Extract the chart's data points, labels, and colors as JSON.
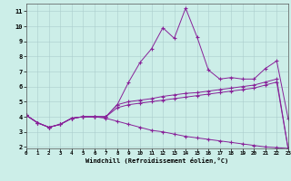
{
  "background_color": "#cceee8",
  "line_color": "#882299",
  "xlim": [
    0,
    23
  ],
  "ylim": [
    1.9,
    11.5
  ],
  "yticks": [
    2,
    3,
    4,
    5,
    6,
    7,
    8,
    9,
    10,
    11
  ],
  "xticks": [
    0,
    1,
    2,
    3,
    4,
    5,
    6,
    7,
    8,
    9,
    10,
    11,
    12,
    13,
    14,
    15,
    16,
    17,
    18,
    19,
    20,
    21,
    22,
    23
  ],
  "xlabel": "Windchill (Refroidissement éolien,°C)",
  "line1_x": [
    0,
    1,
    2,
    3,
    4,
    5,
    6,
    7,
    8,
    9,
    10,
    11,
    12,
    13,
    14,
    15,
    16,
    17,
    18,
    19,
    20,
    21,
    22,
    23
  ],
  "line1_y": [
    4.1,
    3.6,
    3.3,
    3.5,
    3.9,
    4.0,
    4.0,
    4.0,
    4.8,
    6.3,
    7.6,
    8.5,
    9.9,
    9.2,
    11.2,
    9.3,
    7.1,
    6.5,
    6.6,
    6.5,
    6.5,
    7.2,
    7.7,
    3.9
  ],
  "line2_x": [
    0,
    1,
    2,
    3,
    4,
    5,
    6,
    7,
    8,
    9,
    10,
    11,
    12,
    13,
    14,
    15,
    16,
    17,
    18,
    19,
    20,
    21,
    22,
    23
  ],
  "line2_y": [
    4.1,
    3.6,
    3.3,
    3.5,
    3.9,
    4.0,
    4.0,
    4.0,
    4.8,
    5.0,
    5.1,
    5.2,
    5.35,
    5.45,
    5.55,
    5.6,
    5.7,
    5.8,
    5.9,
    6.0,
    6.1,
    6.3,
    6.5,
    1.9
  ],
  "line3_x": [
    0,
    1,
    2,
    3,
    4,
    5,
    6,
    7,
    8,
    9,
    10,
    11,
    12,
    13,
    14,
    15,
    16,
    17,
    18,
    19,
    20,
    21,
    22,
    23
  ],
  "line3_y": [
    4.1,
    3.6,
    3.3,
    3.5,
    3.9,
    4.0,
    4.0,
    4.0,
    4.6,
    4.8,
    4.9,
    5.0,
    5.1,
    5.2,
    5.3,
    5.4,
    5.5,
    5.6,
    5.7,
    5.8,
    5.9,
    6.1,
    6.3,
    1.9
  ],
  "line4_x": [
    0,
    1,
    2,
    3,
    4,
    5,
    6,
    7,
    8,
    9,
    10,
    11,
    12,
    13,
    14,
    15,
    16,
    17,
    18,
    19,
    20,
    21,
    22,
    23
  ],
  "line4_y": [
    4.1,
    3.6,
    3.3,
    3.5,
    3.9,
    4.0,
    4.0,
    3.9,
    3.7,
    3.5,
    3.3,
    3.1,
    3.0,
    2.85,
    2.7,
    2.6,
    2.5,
    2.4,
    2.3,
    2.2,
    2.1,
    2.0,
    1.95,
    1.9
  ]
}
